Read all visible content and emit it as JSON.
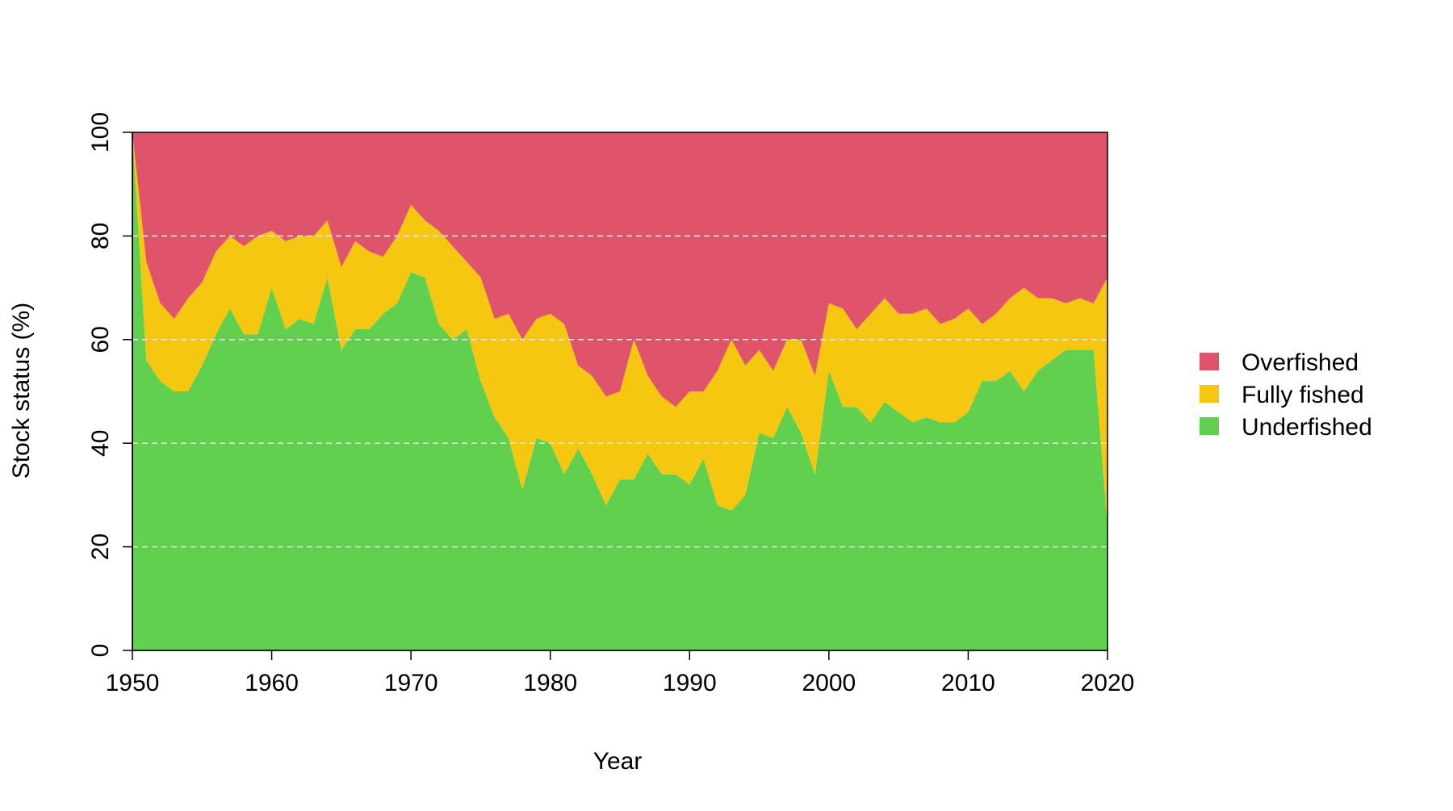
{
  "chart_data": {
    "type": "area",
    "title": "",
    "xlabel": "Year",
    "ylabel": "Stock status (%)",
    "xlim": [
      1950,
      2020
    ],
    "ylim": [
      0,
      100
    ],
    "x_ticks": [
      "1950",
      "1960",
      "1970",
      "1980",
      "1990",
      "2000",
      "2010",
      "2020"
    ],
    "y_ticks": [
      "0",
      "20",
      "40",
      "60",
      "80",
      "100"
    ],
    "grid": "horizontal dashed",
    "legend_position": "right",
    "stacked": true,
    "x": [
      1950,
      1951,
      1952,
      1953,
      1954,
      1955,
      1956,
      1957,
      1958,
      1959,
      1960,
      1961,
      1962,
      1963,
      1964,
      1965,
      1966,
      1967,
      1968,
      1969,
      1970,
      1971,
      1972,
      1973,
      1974,
      1975,
      1976,
      1977,
      1978,
      1979,
      1980,
      1981,
      1982,
      1983,
      1984,
      1985,
      1986,
      1987,
      1988,
      1989,
      1990,
      1991,
      1992,
      1993,
      1994,
      1995,
      1996,
      1997,
      1998,
      1999,
      2000,
      2001,
      2002,
      2003,
      2004,
      2005,
      2006,
      2007,
      2008,
      2009,
      2010,
      2011,
      2012,
      2013,
      2014,
      2015,
      2016,
      2017,
      2018,
      2019,
      2020
    ],
    "series": [
      {
        "name": "Underfished",
        "color": "#61D04F",
        "values": [
          100,
          56,
          52,
          50,
          50,
          55,
          61,
          66,
          61,
          61,
          70,
          62,
          64,
          63,
          72,
          58,
          62,
          62,
          65,
          67,
          73,
          72,
          63,
          60,
          62,
          52,
          45,
          41,
          31,
          41,
          40,
          34,
          39,
          34,
          28,
          33,
          33,
          38,
          34,
          34,
          32,
          37,
          28,
          27,
          30,
          42,
          41,
          47,
          42,
          34,
          54,
          47,
          47,
          44,
          48,
          46,
          44,
          45,
          44,
          44,
          46,
          52,
          52,
          54,
          50,
          54,
          56,
          58,
          58,
          58,
          24
        ]
      },
      {
        "name": "Fully fished",
        "color": "#F5C710",
        "values": [
          0,
          19,
          15,
          14,
          18,
          16,
          16,
          14,
          17,
          19,
          11,
          17,
          16,
          17,
          11,
          16,
          17,
          15,
          11,
          13,
          13,
          11,
          18,
          18,
          13,
          20,
          19,
          24,
          29,
          23,
          25,
          29,
          16,
          19,
          21,
          17,
          27,
          15,
          15,
          13,
          18,
          13,
          26,
          33,
          25,
          16,
          13,
          13,
          18,
          19,
          13,
          19,
          15,
          21,
          20,
          19,
          21,
          21,
          19,
          20,
          20,
          11,
          13,
          14,
          20,
          14,
          12,
          9,
          10,
          9,
          48
        ]
      },
      {
        "name": "Overfished",
        "color": "#DF536B",
        "values": [
          0,
          25,
          33,
          36,
          32,
          29,
          23,
          20,
          22,
          20,
          19,
          21,
          20,
          20,
          17,
          26,
          21,
          23,
          24,
          20,
          14,
          17,
          19,
          22,
          25,
          28,
          36,
          35,
          40,
          36,
          35,
          37,
          45,
          47,
          51,
          50,
          40,
          47,
          51,
          53,
          50,
          50,
          46,
          40,
          45,
          42,
          46,
          40,
          40,
          47,
          33,
          34,
          38,
          35,
          32,
          35,
          35,
          34,
          37,
          36,
          34,
          37,
          35,
          32,
          30,
          32,
          32,
          33,
          32,
          33,
          28
        ]
      }
    ],
    "legend": [
      {
        "label": "Overfished",
        "color": "#DF536B"
      },
      {
        "label": "Fully fished",
        "color": "#F5C710"
      },
      {
        "label": "Underfished",
        "color": "#61D04F"
      }
    ]
  }
}
